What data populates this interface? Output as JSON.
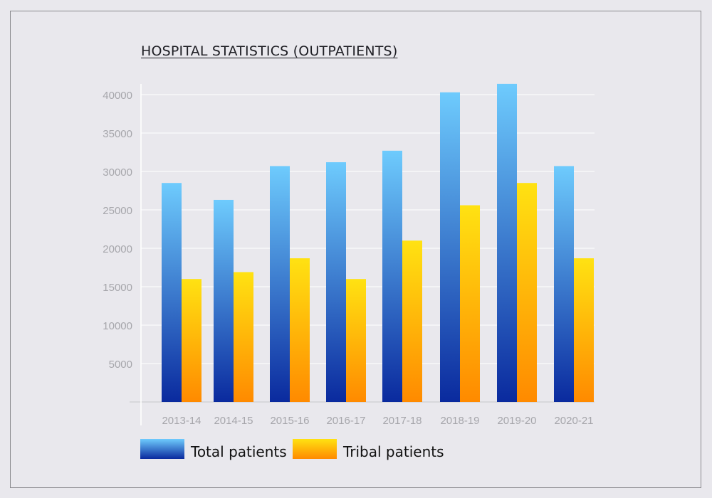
{
  "chart_data": {
    "type": "bar",
    "title": "HOSPITAL STATISTICS (OUTPATIENTS)",
    "xlabel": "",
    "ylabel": "",
    "categories": [
      "2013-14",
      "2014-15",
      "2015-16",
      "2016-17",
      "2017-18",
      "2018-19",
      "2019-20",
      "2020-21"
    ],
    "series": [
      {
        "name": "Total patients",
        "values": [
          28500,
          26300,
          30700,
          31200,
          32700,
          40300,
          41400,
          30700
        ]
      },
      {
        "name": "Tribal patients",
        "values": [
          16000,
          16900,
          18700,
          16000,
          21000,
          25600,
          28500,
          18700
        ]
      }
    ],
    "yticks": [
      {
        "value": 5000,
        "label": "5000"
      },
      {
        "value": 10000,
        "label": "10000"
      },
      {
        "value": 15000,
        "label": "15000"
      },
      {
        "value": 20000,
        "label": "20000"
      },
      {
        "value": 25000,
        "label": "25000"
      },
      {
        "value": 30000,
        "label": "30000"
      },
      {
        "value": 35000,
        "label": "35000"
      },
      {
        "value": 40000,
        "label": "40000"
      }
    ],
    "grid": true,
    "legend": "bottom-left",
    "colors": {
      "total_top": "#6ecbfd",
      "total_bottom": "#0a2a9e",
      "tribal_top": "#ffe212",
      "tribal_bottom": "#ff8a00",
      "grid": "#ffffff",
      "tick_text": "#a6a6ab"
    }
  }
}
